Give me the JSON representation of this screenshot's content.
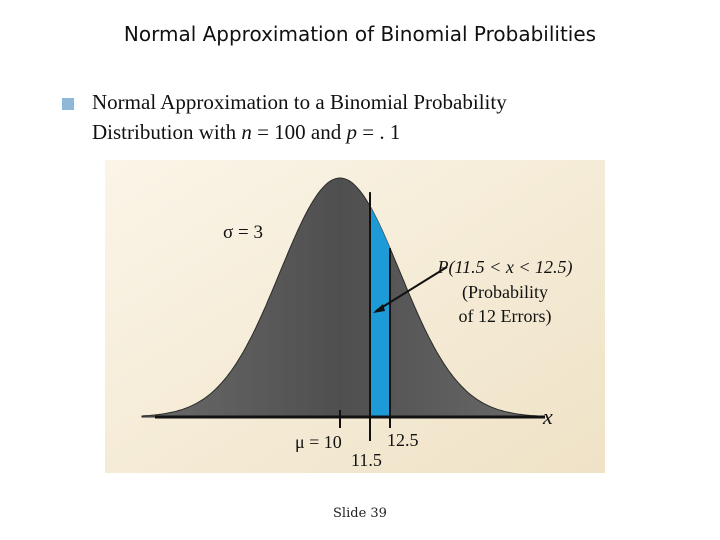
{
  "slide": {
    "title": "Normal Approximation of Binomial Probabilities",
    "bullet_line1": "Normal Approximation to a Binomial Probability",
    "bullet_line2_prefix": "Distribution with ",
    "n_symbol": "n",
    "n_value": " = 100 and ",
    "p_symbol": "p",
    "p_value": " = . 1",
    "footer": "Slide 39"
  },
  "figure": {
    "sigma_label": "σ = 3",
    "prob_line1": "P(11.5 < x < 12.5)",
    "prob_line2": "(Probability",
    "prob_line3": "of 12 Errors)",
    "mu_label": "μ = 10",
    "tick_115": "11.5",
    "tick_125": "12.5",
    "axis_label": "x",
    "mean": 10,
    "sd": 3,
    "shaded_range": [
      11.5,
      12.5
    ],
    "colors": {
      "panel": "#f7eedc",
      "curve_fill": "#5c5c5c",
      "shade": "#1e9ad6",
      "arrow": "#3399ff"
    }
  }
}
